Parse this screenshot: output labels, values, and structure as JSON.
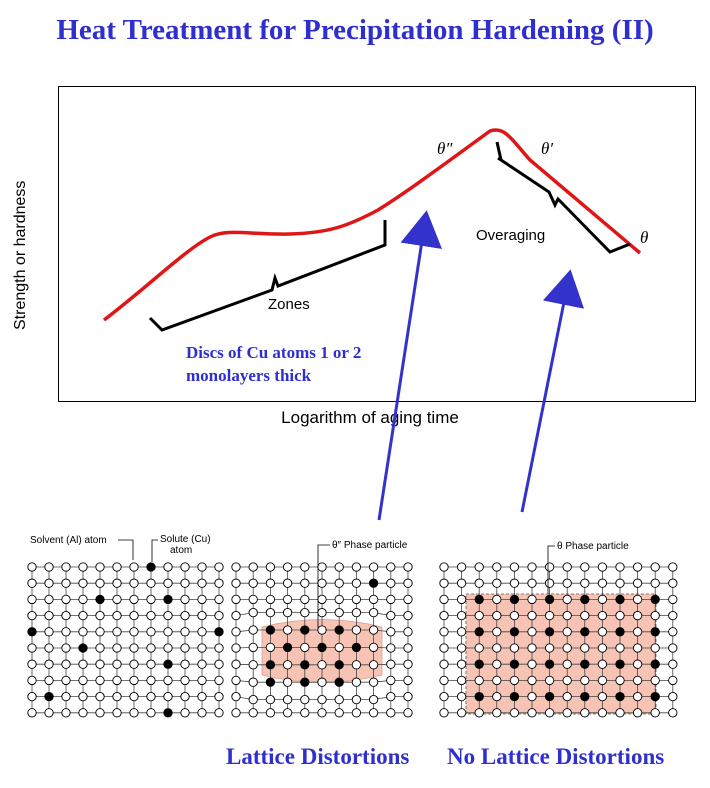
{
  "title": "Heat Treatment for Precipitation Hardening (II)",
  "plot": {
    "ylabel": "Strength or hardness",
    "xlabel": "Logarithm of aging time",
    "zones_label": "Zones",
    "overaging_label": "Overaging",
    "theta_double_prime": "θ″",
    "theta_prime": "θ′",
    "theta": "θ",
    "note_line1": "Discs of Cu atoms 1 or 2",
    "note_line2": "monolayers thick"
  },
  "lattices": {
    "solvent_label_line1": "Solvent (Al) atom",
    "solute_label_line1": "Solute (Cu)",
    "solute_label_line2": "atom",
    "theta_double_prime_particle": "θ″ Phase particle",
    "theta_particle": "θ Phase particle"
  },
  "captions": {
    "left": "Lattice Distortions",
    "right": "No Lattice Distortions"
  },
  "colors": {
    "title": "#2f2fd0",
    "curve": "#e01515",
    "arrow": "#3333cc",
    "precipitate": "#f6c3b4"
  }
}
